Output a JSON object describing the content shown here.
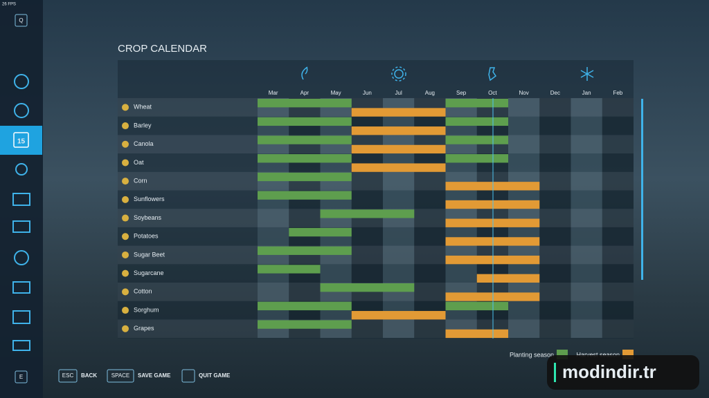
{
  "status": {
    "fps": "26 FPS"
  },
  "sidebar": {
    "top_key": "Q",
    "bottom_key": "E",
    "active_day": "15"
  },
  "title": "CROP CALENDAR",
  "table": {
    "months": [
      "Mar",
      "Apr",
      "May",
      "Jun",
      "Jul",
      "Aug",
      "Sep",
      "Oct",
      "Nov",
      "Dec",
      "Jan",
      "Feb"
    ],
    "crops": [
      {
        "name": "Wheat",
        "planting": [
          [
            0,
            2
          ],
          [
            6,
            7
          ]
        ],
        "harvest": [
          [
            3,
            5
          ]
        ]
      },
      {
        "name": "Barley",
        "planting": [
          [
            0,
            2
          ],
          [
            6,
            7
          ]
        ],
        "harvest": [
          [
            3,
            5
          ]
        ]
      },
      {
        "name": "Canola",
        "planting": [
          [
            0,
            2
          ],
          [
            6,
            7
          ]
        ],
        "harvest": [
          [
            3,
            5
          ]
        ]
      },
      {
        "name": "Oat",
        "planting": [
          [
            0,
            2
          ],
          [
            6,
            7
          ]
        ],
        "harvest": [
          [
            3,
            5
          ]
        ]
      },
      {
        "name": "Corn",
        "planting": [
          [
            0,
            2
          ]
        ],
        "harvest": [
          [
            6,
            8
          ]
        ]
      },
      {
        "name": "Sunflowers",
        "planting": [
          [
            0,
            2
          ]
        ],
        "harvest": [
          [
            6,
            8
          ]
        ]
      },
      {
        "name": "Soybeans",
        "planting": [
          [
            2,
            4
          ]
        ],
        "harvest": [
          [
            6,
            8
          ]
        ]
      },
      {
        "name": "Potatoes",
        "planting": [
          [
            1,
            2
          ]
        ],
        "harvest": [
          [
            6,
            8
          ]
        ]
      },
      {
        "name": "Sugar Beet",
        "planting": [
          [
            0,
            2
          ]
        ],
        "harvest": [
          [
            6,
            8
          ]
        ]
      },
      {
        "name": "Sugarcane",
        "planting": [
          [
            0,
            1
          ]
        ],
        "harvest": [
          [
            7,
            8
          ]
        ]
      },
      {
        "name": "Cotton",
        "planting": [
          [
            2,
            4
          ]
        ],
        "harvest": [
          [
            6,
            8
          ]
        ]
      },
      {
        "name": "Sorghum",
        "planting": [
          [
            0,
            2
          ],
          [
            6,
            7
          ]
        ],
        "harvest": [
          [
            3,
            5
          ]
        ]
      },
      {
        "name": "Grapes",
        "planting": [
          [
            0,
            2
          ]
        ],
        "harvest": [
          [
            6,
            7
          ]
        ]
      }
    ]
  },
  "legend": {
    "planting": {
      "label": "Planting season",
      "color": "#5e9e4e"
    },
    "harvest": {
      "label": "Harvest season",
      "color": "#e29a35"
    }
  },
  "footer": [
    {
      "key": "ESC",
      "label": "BACK"
    },
    {
      "key": "SPACE",
      "label": "SAVE GAME"
    },
    {
      "key": "",
      "label": "QUIT GAME"
    }
  ],
  "watermark": "modindir.tr"
}
